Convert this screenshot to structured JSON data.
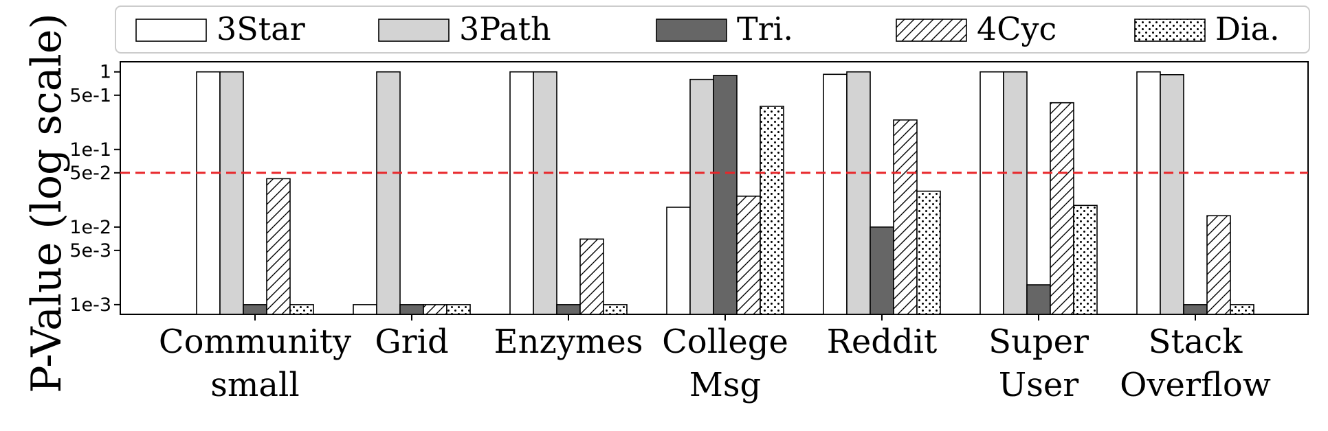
{
  "chart_data": {
    "type": "bar",
    "ylabel": "P-Value (log scale)",
    "yscale": "log",
    "ylim": [
      0.00075,
      1.35
    ],
    "yticks": [
      {
        "value": 1,
        "label": "1"
      },
      {
        "value": 0.5,
        "label": "5e-1"
      },
      {
        "value": 0.1,
        "label": "1e-1"
      },
      {
        "value": 0.05,
        "label": "5e-2"
      },
      {
        "value": 0.01,
        "label": "1e-2"
      },
      {
        "value": 0.005,
        "label": "5e-3"
      },
      {
        "value": 0.001,
        "label": "1e-3"
      }
    ],
    "threshold": {
      "value": 0.05,
      "color": "#e8262a",
      "style": "dashed"
    },
    "categories": [
      {
        "lines": [
          "Community",
          "small"
        ]
      },
      {
        "lines": [
          "Grid"
        ]
      },
      {
        "lines": [
          "Enzymes"
        ]
      },
      {
        "lines": [
          "College",
          "Msg"
        ]
      },
      {
        "lines": [
          "Reddit"
        ]
      },
      {
        "lines": [
          "Super",
          "User"
        ]
      },
      {
        "lines": [
          "Stack",
          "Overflow"
        ]
      }
    ],
    "series": [
      {
        "name": "3Star",
        "fill": "#ffffff",
        "pattern": "none",
        "values": [
          1.0,
          0.001,
          1.0,
          0.018,
          0.93,
          1.0,
          1.0
        ]
      },
      {
        "name": "3Path",
        "fill": "#d3d3d3",
        "pattern": "none",
        "values": [
          1.0,
          1.0,
          1.0,
          0.8,
          1.0,
          1.0,
          0.92
        ]
      },
      {
        "name": "Tri.",
        "fill": "#666666",
        "pattern": "none",
        "values": [
          0.001,
          0.001,
          0.001,
          0.9,
          0.01,
          0.0018,
          0.001
        ]
      },
      {
        "name": "4Cyc",
        "fill": "#ffffff",
        "pattern": "hatch",
        "values": [
          0.042,
          0.001,
          0.007,
          0.025,
          0.24,
          0.4,
          0.014
        ]
      },
      {
        "name": "Dia.",
        "fill": "#ffffff",
        "pattern": "dots",
        "values": [
          0.001,
          0.001,
          0.001,
          0.36,
          0.029,
          0.019,
          0.001
        ]
      }
    ],
    "legend": {
      "position": "top",
      "columns": 5
    },
    "grid": false
  }
}
